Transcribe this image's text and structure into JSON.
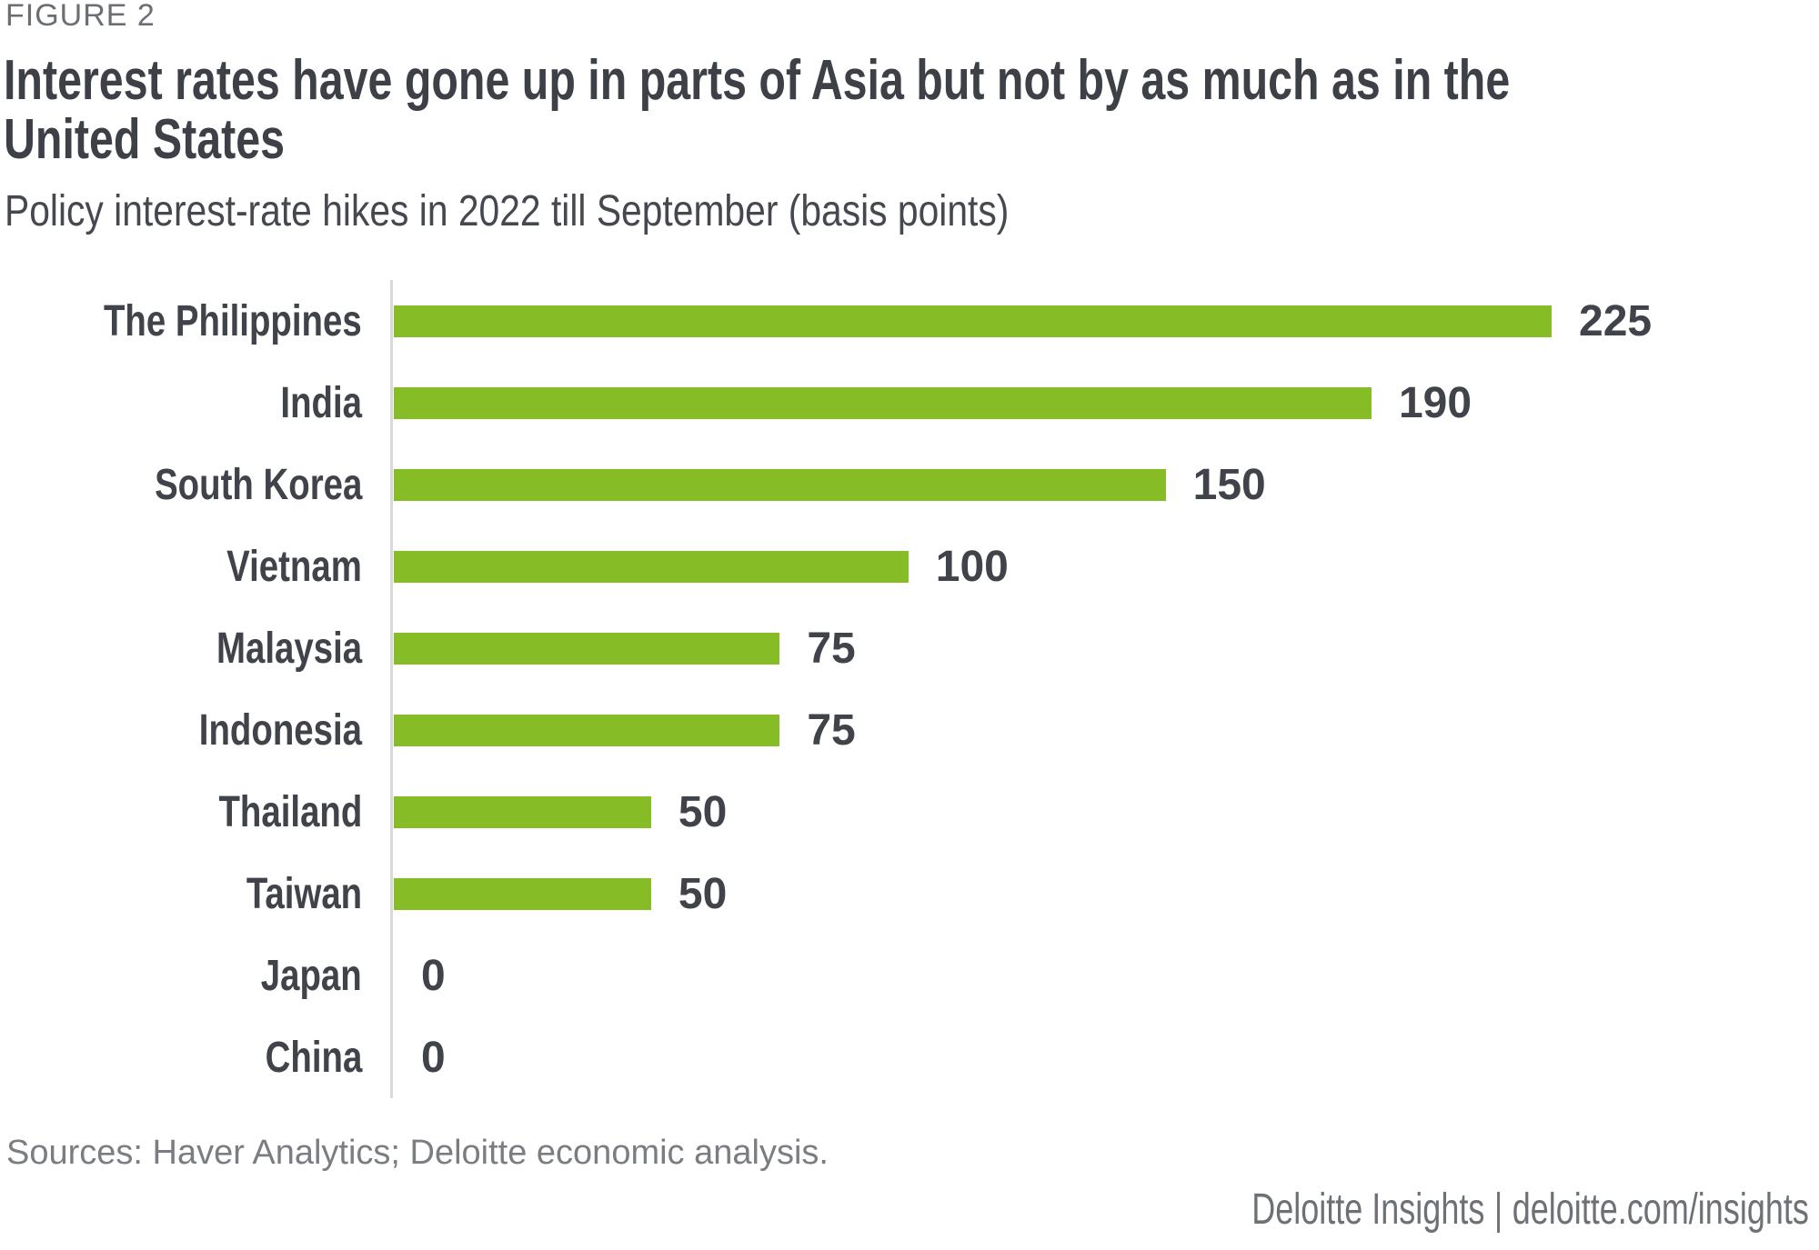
{
  "figure_label": "FIGURE 2",
  "title": {
    "full": "Interest rates have gone up in parts of Asia but not by as much as in the United States",
    "line1": "Interest rates have gone up in parts of Asia but not by as much as in the",
    "line2": "United States"
  },
  "subtitle": "Policy interest-rate hikes in 2022 till September (basis points)",
  "source_note": "Sources: Haver Analytics; Deloitte economic analysis.",
  "footer": {
    "text": "Deloitte Insights | deloitte.com/insights",
    "brand": "Deloitte Insights",
    "separator": "|",
    "site": "deloitte.com/insights"
  },
  "colors": {
    "bar_green": "#86BC25",
    "heading_text": "#3D4147",
    "label_text": "#404349",
    "figure_label_text": "#6B6F75",
    "source_text": "#7A7E83",
    "footer_text": "#6D7176",
    "axis_line": "#D9D9D9",
    "background": "#FFFFFF"
  },
  "chart_data": {
    "type": "bar",
    "orientation": "horizontal",
    "title": "Interest rates have gone up in parts of Asia but not by as much as in the United States",
    "subtitle": "Policy interest-rate hikes in 2022 till September (basis points)",
    "unit": "basis points",
    "categories": [
      "The Philippines",
      "India",
      "South Korea",
      "Vietnam",
      "Malaysia",
      "Indonesia",
      "Thailand",
      "Taiwan",
      "Japan",
      "China"
    ],
    "values": [
      225,
      190,
      150,
      100,
      75,
      75,
      50,
      50,
      0,
      0
    ],
    "value_labels": [
      "225",
      "190",
      "150",
      "100",
      "75",
      "75",
      "50",
      "50",
      "0",
      "0"
    ],
    "xlim": [
      0,
      225
    ],
    "xlabel": "",
    "ylabel": "",
    "grid": false,
    "legend": false,
    "bar_color": "#86BC25"
  }
}
